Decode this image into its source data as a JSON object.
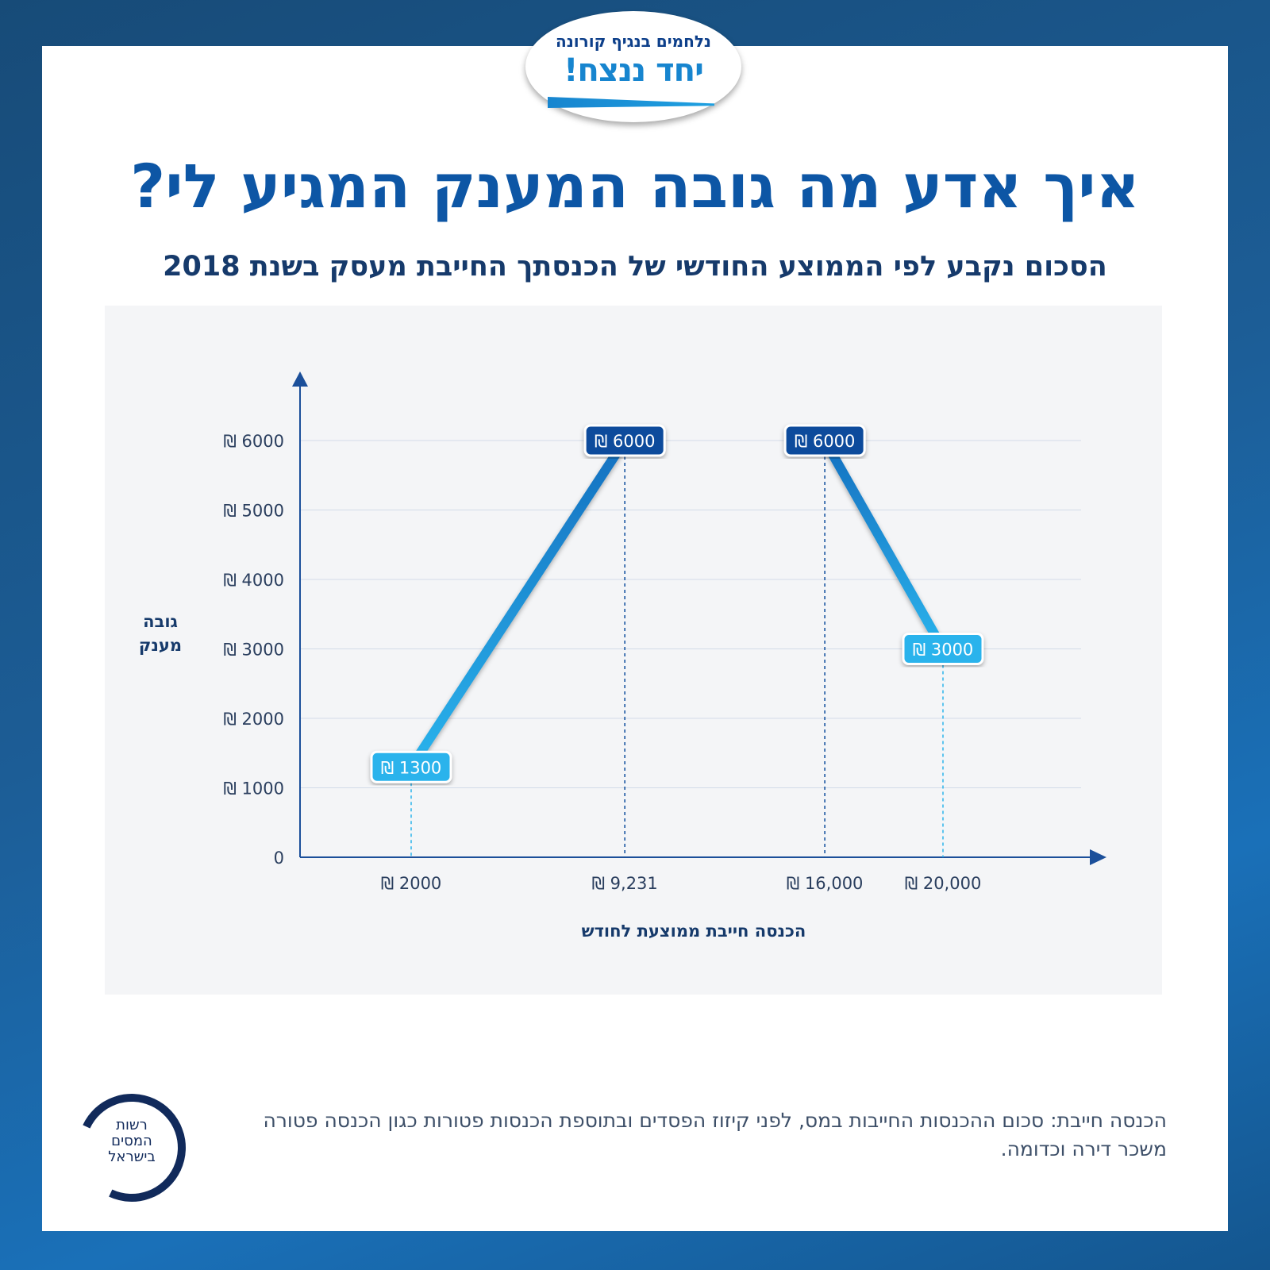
{
  "logo": {
    "line1": "נלחמים בנגיף קורונה",
    "line2": "יחד ננצח!"
  },
  "title": "איך אדע מה גובה המענק המגיע לי?",
  "subtitle": "הסכום נקבע לפי הממוצע החודשי של הכנסתך החייבת מעסק בשנת 2018",
  "chart_data": {
    "type": "line",
    "ylabel": [
      "גובה",
      "מענק"
    ],
    "xlabel": "הכנסה חייבת ממוצעת לחודש",
    "ylim": [
      0,
      6000
    ],
    "yticks": [
      0,
      1000,
      2000,
      3000,
      4000,
      5000,
      6000
    ],
    "ytick_labels": [
      "0",
      "₪ 1000",
      "₪ 2000",
      "₪ 3000",
      "₪ 4000",
      "₪ 5000",
      "₪ 6000"
    ],
    "x": [
      2000,
      9231,
      16000,
      20000
    ],
    "xtick_labels": [
      "₪ 2000",
      "₪ 9,231",
      "₪ 16,000",
      "₪ 20,000"
    ],
    "y": [
      1300,
      6000,
      6000,
      3000
    ],
    "point_labels": [
      "₪ 1300",
      "₪ 6000",
      "₪ 6000",
      "₪ 3000"
    ],
    "grid": true,
    "colors": {
      "light": "#2ab3ec",
      "dark": "#0c4c9c",
      "axis": "#1b4f9a"
    }
  },
  "footnote": "הכנסה חייבת: סכום ההכנסות החייבות במס, לפני קיזוז הפסדים ובתוספת הכנסות פטורות כגון הכנסה פטורה משכר דירה וכדומה.",
  "seal": {
    "text": "רשות המסים בישראל"
  }
}
